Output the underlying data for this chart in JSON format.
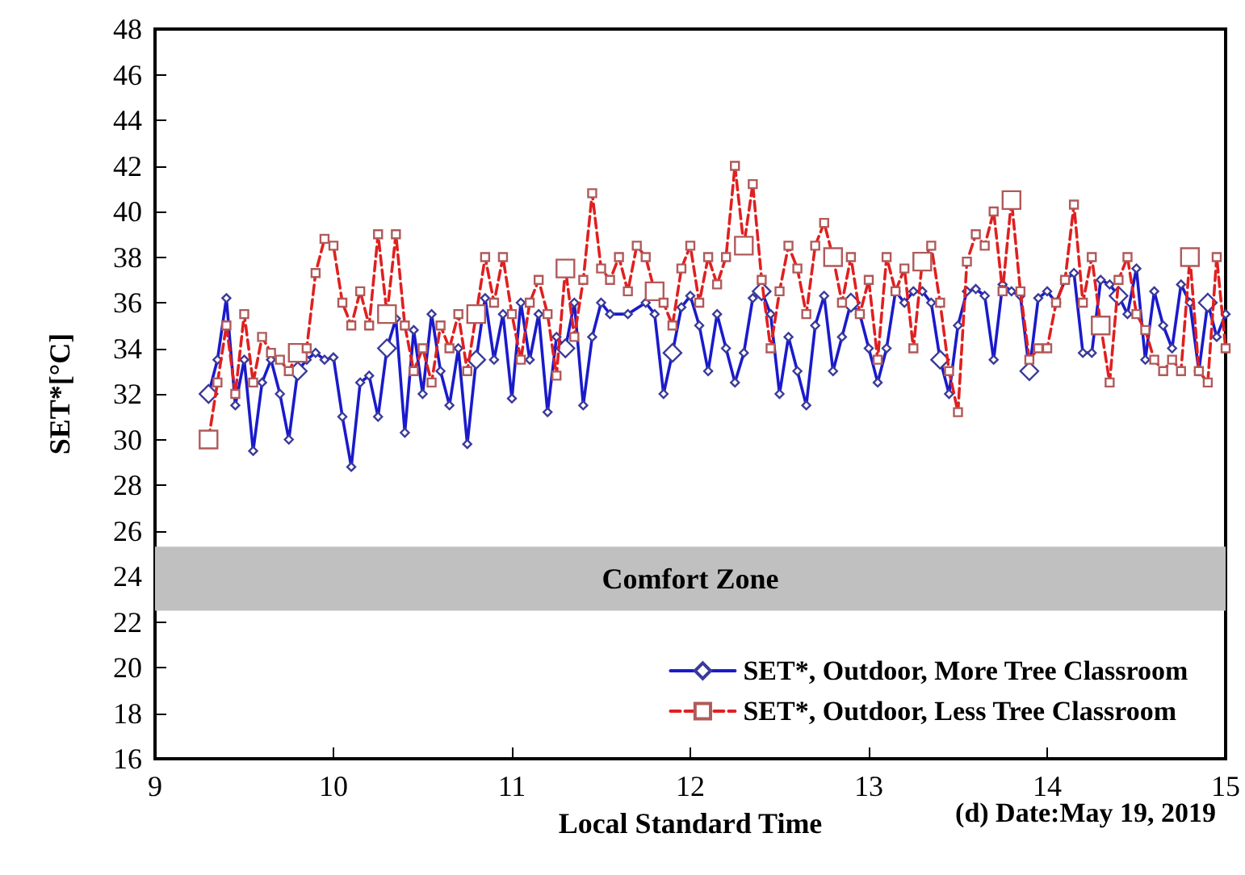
{
  "chart_data": {
    "type": "line",
    "xlabel": "Local Standard Time",
    "ylabel": "SET*[°C]",
    "annotations": [
      "(d) Date:May 19, 2019"
    ],
    "xlim": [
      9,
      15
    ],
    "xticks": [
      9,
      10,
      11,
      12,
      13,
      14,
      15
    ],
    "ylim": [
      16,
      48
    ],
    "yticks": [
      16,
      18,
      20,
      22,
      24,
      26,
      28,
      30,
      32,
      34,
      36,
      38,
      40,
      42,
      44,
      46,
      48
    ],
    "grid": false,
    "legend": "bottom right",
    "bands": [
      {
        "axis": "y",
        "from": 22.5,
        "to": 25.3,
        "label": "Comfort Zone",
        "color": "#c0c0c0"
      }
    ],
    "series": [
      {
        "name": "SET*, Outdoor, More Tree Classroom",
        "color": "#1a1acc",
        "marker": "diamond",
        "line_style": "solid",
        "x": [
          9.3,
          9.35,
          9.4,
          9.45,
          9.5,
          9.55,
          9.6,
          9.65,
          9.7,
          9.75,
          9.8,
          9.85,
          9.9,
          9.95,
          10.0,
          10.05,
          10.1,
          10.15,
          10.2,
          10.25,
          10.3,
          10.35,
          10.4,
          10.45,
          10.5,
          10.55,
          10.6,
          10.65,
          10.7,
          10.75,
          10.8,
          10.85,
          10.9,
          10.95,
          11.0,
          11.05,
          11.1,
          11.15,
          11.2,
          11.25,
          11.3,
          11.35,
          11.4,
          11.45,
          11.5,
          11.55,
          11.65,
          11.75,
          11.8,
          11.85,
          11.9,
          11.95,
          12.0,
          12.05,
          12.1,
          12.15,
          12.2,
          12.25,
          12.3,
          12.35,
          12.4,
          12.45,
          12.5,
          12.55,
          12.6,
          12.65,
          12.7,
          12.75,
          12.8,
          12.85,
          12.9,
          12.95,
          13.0,
          13.05,
          13.1,
          13.15,
          13.2,
          13.25,
          13.3,
          13.35,
          13.4,
          13.45,
          13.5,
          13.55,
          13.6,
          13.65,
          13.7,
          13.75,
          13.8,
          13.85,
          13.9,
          13.95,
          14.0,
          14.05,
          14.1,
          14.15,
          14.2,
          14.25,
          14.3,
          14.35,
          14.4,
          14.45,
          14.5,
          14.55,
          14.6,
          14.65,
          14.7,
          14.75,
          14.8,
          14.85,
          14.9,
          14.95,
          15.0
        ],
        "values": [
          32.0,
          33.5,
          36.2,
          31.5,
          33.5,
          29.5,
          32.5,
          33.5,
          32.0,
          30.0,
          33.0,
          33.5,
          33.8,
          33.5,
          33.6,
          31.0,
          28.8,
          32.5,
          32.8,
          31.0,
          34.0,
          35.3,
          30.3,
          34.8,
          32.0,
          35.5,
          33.0,
          31.5,
          34.0,
          29.8,
          33.5,
          36.2,
          33.5,
          35.5,
          31.8,
          36.0,
          33.5,
          35.5,
          31.2,
          34.5,
          34.0,
          36.0,
          31.5,
          34.5,
          36.0,
          35.5,
          35.5,
          36.0,
          35.5,
          32.0,
          33.8,
          35.8,
          36.3,
          35.0,
          33.0,
          35.5,
          34.0,
          32.5,
          33.8,
          36.2,
          36.5,
          35.5,
          32.0,
          34.5,
          33.0,
          31.5,
          35.0,
          36.3,
          33.0,
          34.5,
          36.0,
          35.5,
          34.0,
          32.5,
          34.0,
          36.5,
          36.0,
          36.5,
          36.5,
          36.0,
          33.5,
          32.0,
          35.0,
          36.5,
          36.6,
          36.3,
          33.5,
          36.8,
          36.5,
          36.3,
          33.0,
          36.2,
          36.5,
          36.0,
          37.0,
          37.3,
          33.8,
          33.8,
          37.0,
          36.8,
          36.3,
          35.5,
          37.5,
          33.5,
          36.5,
          35.0,
          34.0,
          36.8,
          36.0,
          33.0,
          36.0,
          34.5,
          35.5
        ]
      },
      {
        "name": "SET*, Outdoor, Less Tree Classroom",
        "color": "#e02020",
        "marker": "square",
        "line_style": "dashed",
        "x": [
          9.3,
          9.35,
          9.4,
          9.45,
          9.5,
          9.55,
          9.6,
          9.65,
          9.7,
          9.75,
          9.8,
          9.85,
          9.9,
          9.95,
          10.0,
          10.05,
          10.1,
          10.15,
          10.2,
          10.25,
          10.3,
          10.35,
          10.4,
          10.45,
          10.5,
          10.55,
          10.6,
          10.65,
          10.7,
          10.75,
          10.8,
          10.85,
          10.9,
          10.95,
          11.0,
          11.05,
          11.1,
          11.15,
          11.2,
          11.25,
          11.3,
          11.35,
          11.4,
          11.45,
          11.5,
          11.55,
          11.6,
          11.65,
          11.7,
          11.75,
          11.8,
          11.85,
          11.9,
          11.95,
          12.0,
          12.05,
          12.1,
          12.15,
          12.2,
          12.25,
          12.3,
          12.35,
          12.4,
          12.45,
          12.5,
          12.55,
          12.6,
          12.65,
          12.7,
          12.75,
          12.8,
          12.85,
          12.9,
          12.95,
          13.0,
          13.05,
          13.1,
          13.15,
          13.2,
          13.25,
          13.3,
          13.35,
          13.4,
          13.45,
          13.5,
          13.55,
          13.6,
          13.65,
          13.7,
          13.75,
          13.8,
          13.85,
          13.9,
          13.95,
          14.0,
          14.05,
          14.1,
          14.15,
          14.2,
          14.25,
          14.3,
          14.35,
          14.4,
          14.45,
          14.5,
          14.55,
          14.6,
          14.65,
          14.7,
          14.75,
          14.8,
          14.85,
          14.9,
          14.95,
          15.0
        ],
        "values": [
          30.0,
          32.5,
          35.0,
          32.0,
          35.5,
          32.5,
          34.5,
          33.8,
          33.5,
          33.0,
          33.8,
          34.0,
          37.3,
          38.8,
          38.5,
          36.0,
          35.0,
          36.5,
          35.0,
          39.0,
          35.5,
          39.0,
          35.0,
          33.0,
          34.0,
          32.5,
          35.0,
          34.0,
          35.5,
          33.0,
          35.5,
          38.0,
          36.0,
          38.0,
          35.5,
          33.5,
          36.0,
          37.0,
          35.5,
          32.8,
          37.5,
          34.5,
          37.0,
          40.8,
          37.5,
          37.0,
          38.0,
          36.5,
          38.5,
          38.0,
          36.5,
          36.0,
          35.0,
          37.5,
          38.5,
          36.0,
          38.0,
          36.8,
          38.0,
          42.0,
          38.5,
          41.2,
          37.0,
          34.0,
          36.5,
          38.5,
          37.5,
          35.5,
          38.5,
          39.5,
          38.0,
          36.0,
          38.0,
          35.5,
          37.0,
          33.5,
          38.0,
          36.5,
          37.5,
          34.0,
          37.8,
          38.5,
          36.0,
          33.0,
          31.2,
          37.8,
          39.0,
          38.5,
          40.0,
          36.5,
          40.5,
          36.5,
          33.5,
          34.0,
          34.0,
          36.0,
          37.0,
          40.3,
          36.0,
          38.0,
          35.0,
          32.5,
          37.0,
          38.0,
          35.5,
          34.8,
          33.5,
          33.0,
          33.5,
          33.0,
          38.0,
          33.0,
          32.5,
          38.0,
          34.0
        ]
      }
    ]
  }
}
